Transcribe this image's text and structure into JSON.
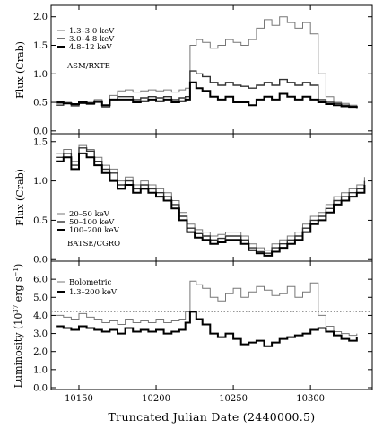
{
  "chart_data": [
    {
      "type": "line",
      "panel": "top",
      "label": "ASM/RXTE",
      "ylabel": "Flux (Crab)",
      "ylim": [
        -0.05,
        2.2
      ],
      "yticks": [
        "0.0",
        "0.5",
        "1.0",
        "1.5",
        "2.0"
      ],
      "legend_position": "top-left",
      "series": [
        {
          "name": "1.3–3.0 keV",
          "color": "#777777",
          "x": [
            10135,
            10140,
            10145,
            10150,
            10155,
            10160,
            10165,
            10170,
            10175,
            10180,
            10185,
            10190,
            10195,
            10200,
            10205,
            10210,
            10215,
            10219,
            10222,
            10226,
            10230,
            10235,
            10240,
            10245,
            10250,
            10255,
            10260,
            10265,
            10270,
            10275,
            10280,
            10285,
            10290,
            10295,
            10300,
            10305,
            10310,
            10315,
            10320,
            10325,
            10330
          ],
          "y": [
            0.48,
            0.5,
            0.45,
            0.52,
            0.5,
            0.55,
            0.45,
            0.62,
            0.7,
            0.72,
            0.68,
            0.7,
            0.72,
            0.7,
            0.72,
            0.68,
            0.72,
            0.75,
            1.5,
            1.6,
            1.55,
            1.45,
            1.5,
            1.6,
            1.55,
            1.5,
            1.6,
            1.8,
            1.95,
            1.85,
            2.0,
            1.9,
            1.8,
            1.9,
            1.7,
            1.0,
            0.6,
            0.5,
            0.48,
            0.45,
            0.42
          ]
        },
        {
          "name": "3.0–4.8 keV",
          "color": "#333333",
          "x": [
            10135,
            10140,
            10145,
            10150,
            10155,
            10160,
            10165,
            10170,
            10175,
            10180,
            10185,
            10190,
            10195,
            10200,
            10205,
            10210,
            10215,
            10219,
            10222,
            10226,
            10230,
            10235,
            10240,
            10245,
            10250,
            10255,
            10260,
            10265,
            10270,
            10275,
            10280,
            10285,
            10290,
            10295,
            10300,
            10305,
            10310,
            10315,
            10320,
            10325,
            10330
          ],
          "y": [
            0.45,
            0.48,
            0.44,
            0.48,
            0.47,
            0.5,
            0.42,
            0.55,
            0.6,
            0.6,
            0.55,
            0.58,
            0.6,
            0.58,
            0.6,
            0.55,
            0.58,
            0.6,
            1.05,
            1.0,
            0.95,
            0.85,
            0.8,
            0.85,
            0.8,
            0.78,
            0.75,
            0.8,
            0.85,
            0.8,
            0.9,
            0.85,
            0.8,
            0.85,
            0.8,
            0.55,
            0.5,
            0.48,
            0.45,
            0.43,
            0.42
          ]
        },
        {
          "name": "4.8–12 keV",
          "color": "#000000",
          "x": [
            10135,
            10140,
            10145,
            10150,
            10155,
            10160,
            10165,
            10170,
            10175,
            10180,
            10185,
            10190,
            10195,
            10200,
            10205,
            10210,
            10215,
            10219,
            10222,
            10226,
            10230,
            10235,
            10240,
            10245,
            10250,
            10255,
            10260,
            10265,
            10270,
            10275,
            10280,
            10285,
            10290,
            10295,
            10300,
            10305,
            10310,
            10315,
            10320,
            10325,
            10330
          ],
          "y": [
            0.5,
            0.48,
            0.47,
            0.5,
            0.48,
            0.52,
            0.45,
            0.55,
            0.55,
            0.55,
            0.5,
            0.52,
            0.55,
            0.52,
            0.55,
            0.5,
            0.52,
            0.55,
            0.85,
            0.75,
            0.7,
            0.6,
            0.55,
            0.6,
            0.5,
            0.5,
            0.45,
            0.55,
            0.6,
            0.55,
            0.65,
            0.6,
            0.55,
            0.6,
            0.55,
            0.5,
            0.47,
            0.45,
            0.43,
            0.42,
            0.4
          ]
        }
      ]
    },
    {
      "type": "line",
      "panel": "middle",
      "label": "BATSE/CGRO",
      "ylabel": "Flux (Crab)",
      "ylim": [
        -0.02,
        1.6
      ],
      "yticks": [
        "0.0",
        "0.5",
        "1.0",
        "1.5"
      ],
      "legend_position": "bottom-left",
      "series": [
        {
          "name": "20–50 keV",
          "color": "#777777",
          "x": [
            10135,
            10140,
            10145,
            10150,
            10155,
            10160,
            10165,
            10170,
            10175,
            10180,
            10185,
            10190,
            10195,
            10200,
            10205,
            10210,
            10215,
            10220,
            10225,
            10230,
            10235,
            10240,
            10245,
            10250,
            10255,
            10260,
            10265,
            10270,
            10275,
            10280,
            10285,
            10290,
            10295,
            10300,
            10305,
            10310,
            10315,
            10320,
            10325,
            10330,
            10335
          ],
          "y": [
            1.35,
            1.4,
            1.25,
            1.45,
            1.4,
            1.3,
            1.2,
            1.15,
            1.0,
            1.05,
            0.95,
            1.0,
            0.95,
            0.9,
            0.85,
            0.75,
            0.6,
            0.45,
            0.38,
            0.35,
            0.3,
            0.32,
            0.35,
            0.35,
            0.3,
            0.2,
            0.15,
            0.12,
            0.2,
            0.25,
            0.3,
            0.35,
            0.45,
            0.55,
            0.6,
            0.7,
            0.8,
            0.85,
            0.9,
            0.95,
            1.05
          ]
        },
        {
          "name": "50–100 keV",
          "color": "#333333",
          "x": [
            10135,
            10140,
            10145,
            10150,
            10155,
            10160,
            10165,
            10170,
            10175,
            10180,
            10185,
            10190,
            10195,
            10200,
            10205,
            10210,
            10215,
            10220,
            10225,
            10230,
            10235,
            10240,
            10245,
            10250,
            10255,
            10260,
            10265,
            10270,
            10275,
            10280,
            10285,
            10290,
            10295,
            10300,
            10305,
            10310,
            10315,
            10320,
            10325,
            10330,
            10335
          ],
          "y": [
            1.3,
            1.35,
            1.2,
            1.42,
            1.38,
            1.25,
            1.15,
            1.1,
            0.95,
            1.0,
            0.9,
            0.95,
            0.9,
            0.85,
            0.8,
            0.7,
            0.55,
            0.4,
            0.33,
            0.3,
            0.25,
            0.27,
            0.3,
            0.3,
            0.25,
            0.15,
            0.1,
            0.08,
            0.15,
            0.2,
            0.25,
            0.3,
            0.4,
            0.5,
            0.55,
            0.65,
            0.75,
            0.8,
            0.85,
            0.9,
            1.0
          ]
        },
        {
          "name": "100–200 keV",
          "color": "#000000",
          "x": [
            10135,
            10140,
            10145,
            10150,
            10155,
            10160,
            10165,
            10170,
            10175,
            10180,
            10185,
            10190,
            10195,
            10200,
            10205,
            10210,
            10215,
            10220,
            10225,
            10230,
            10235,
            10240,
            10245,
            10250,
            10255,
            10260,
            10265,
            10270,
            10275,
            10280,
            10285,
            10290,
            10295,
            10300,
            10305,
            10310,
            10315,
            10320,
            10325,
            10330,
            10335
          ],
          "y": [
            1.25,
            1.3,
            1.15,
            1.35,
            1.3,
            1.2,
            1.1,
            1.0,
            0.9,
            0.95,
            0.85,
            0.9,
            0.85,
            0.8,
            0.75,
            0.65,
            0.5,
            0.35,
            0.28,
            0.25,
            0.2,
            0.22,
            0.25,
            0.25,
            0.2,
            0.12,
            0.08,
            0.05,
            0.1,
            0.15,
            0.2,
            0.25,
            0.35,
            0.45,
            0.5,
            0.6,
            0.7,
            0.75,
            0.8,
            0.85,
            0.95
          ]
        }
      ]
    },
    {
      "type": "line",
      "panel": "bottom",
      "ylabel": "Luminosity (10^37 erg s^-1)",
      "ylim": [
        -0.1,
        7.0
      ],
      "yticks": [
        "0.0",
        "1.0",
        "2.0",
        "3.0",
        "4.0",
        "5.0",
        "6.0"
      ],
      "legend_position": "top-left",
      "reference_line": 4.2,
      "series": [
        {
          "name": "Bolometric",
          "color": "#777777",
          "x": [
            10135,
            10140,
            10145,
            10150,
            10155,
            10160,
            10165,
            10170,
            10175,
            10180,
            10185,
            10190,
            10195,
            10200,
            10205,
            10210,
            10215,
            10219,
            10222,
            10226,
            10230,
            10235,
            10240,
            10245,
            10250,
            10255,
            10260,
            10265,
            10270,
            10275,
            10280,
            10285,
            10290,
            10295,
            10300,
            10305,
            10310,
            10315,
            10320,
            10325,
            10330
          ],
          "y": [
            4.0,
            3.9,
            3.8,
            4.1,
            3.9,
            3.8,
            3.6,
            3.7,
            3.5,
            3.8,
            3.6,
            3.7,
            3.6,
            3.8,
            3.6,
            3.7,
            3.8,
            4.2,
            5.9,
            5.7,
            5.5,
            5.0,
            4.8,
            5.2,
            5.5,
            5.0,
            5.3,
            5.6,
            5.4,
            5.1,
            5.2,
            5.6,
            5.0,
            5.3,
            5.8,
            4.0,
            3.4,
            3.1,
            3.0,
            2.9,
            3.0
          ]
        },
        {
          "name": "1.3–200 keV",
          "color": "#000000",
          "x": [
            10135,
            10140,
            10145,
            10150,
            10155,
            10160,
            10165,
            10170,
            10175,
            10180,
            10185,
            10190,
            10195,
            10200,
            10205,
            10210,
            10215,
            10219,
            10222,
            10226,
            10230,
            10235,
            10240,
            10245,
            10250,
            10255,
            10260,
            10265,
            10270,
            10275,
            10280,
            10285,
            10290,
            10295,
            10300,
            10305,
            10310,
            10315,
            10320,
            10325,
            10330
          ],
          "y": [
            3.4,
            3.3,
            3.2,
            3.4,
            3.3,
            3.2,
            3.1,
            3.2,
            3.0,
            3.3,
            3.1,
            3.2,
            3.1,
            3.2,
            3.0,
            3.1,
            3.2,
            3.6,
            4.2,
            3.8,
            3.5,
            3.0,
            2.8,
            3.0,
            2.7,
            2.4,
            2.5,
            2.6,
            2.3,
            2.5,
            2.7,
            2.8,
            2.9,
            3.0,
            3.2,
            3.3,
            3.1,
            2.9,
            2.7,
            2.6,
            2.8
          ]
        }
      ]
    }
  ],
  "x_axis": {
    "title": "Truncated Julian Date (2440000.5)",
    "ticks": [
      "10150",
      "10200",
      "10250",
      "10300"
    ],
    "xlim": [
      10132,
      10340
    ]
  }
}
